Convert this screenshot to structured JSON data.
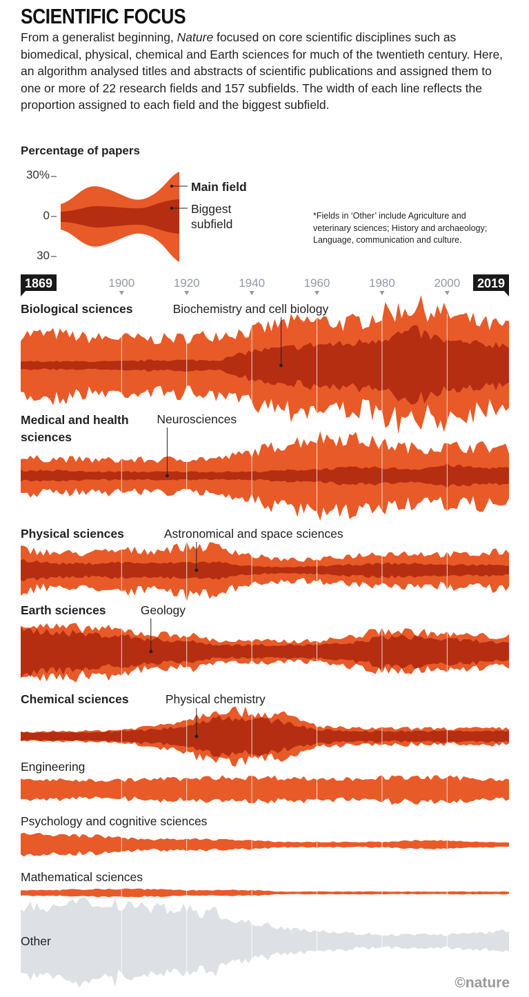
{
  "title": "SCIENTIFIC FOCUS",
  "intro": {
    "before": "From a generalist beginning, ",
    "italic": "Nature",
    "after": " focused on core scientific disciplines such as biomedical, physical, chemical and Earth sciences for much of the twentieth century. Here, an algorithm analysed titles and abstracts of scientific publications and assigned them to one or more of 22 research fields and 157 subfields. The width of each line reflects the proportion assigned to each field and the biggest subfield."
  },
  "legend": {
    "heading": "Percentage of papers",
    "ticks": [
      "30%",
      "0",
      "30"
    ],
    "main_label": "Main field",
    "sub_label_1": "Biggest",
    "sub_label_2": "subfield",
    "note": "*Fields in ‘Other’ include Agriculture and veterinary sciences; History and archaeology; Language, communication and culture."
  },
  "credit": "©nature",
  "colors": {
    "main": "#e85a28",
    "sub": "#b52e12",
    "other": "#dde1e6",
    "axis": "#8f9aa8"
  },
  "chart_data": {
    "type": "area",
    "title": "Scientific focus",
    "ylabel": "Percentage of papers",
    "xlim": [
      1869,
      2019
    ],
    "axis": {
      "start_label": "1869",
      "end_label": "2019",
      "ticks": [
        "1900",
        "1920",
        "1940",
        "1960",
        "1980",
        "2000"
      ]
    },
    "x": [
      1869,
      1880,
      1890,
      1900,
      1910,
      1920,
      1930,
      1940,
      1950,
      1960,
      1970,
      1980,
      1990,
      2000,
      2010,
      2019
    ],
    "series": [
      {
        "name": "Biological sciences",
        "bold": true,
        "subfield": "Biochemistry and cell biology",
        "sub_year": 1949,
        "main": [
          24,
          24,
          21,
          21,
          20,
          21,
          24,
          26,
          32,
          34,
          32,
          39,
          45,
          39,
          32,
          29
        ],
        "sub": [
          3,
          3,
          3,
          3,
          4,
          4,
          4,
          11,
          13,
          16,
          16,
          21,
          26,
          18,
          16,
          16
        ]
      },
      {
        "name": "Medical and health sciences",
        "bold": true,
        "subfield": "Neurosciences",
        "sub_year": 1914,
        "main": [
          13,
          13,
          12,
          12,
          12,
          13,
          13,
          18,
          24,
          29,
          29,
          24,
          21,
          22,
          22,
          21
        ],
        "sub": [
          4,
          4,
          3,
          3,
          3,
          3,
          3,
          3,
          4,
          5,
          6,
          6,
          5,
          8,
          6,
          6
        ]
      },
      {
        "name": "Physical sciences",
        "bold": true,
        "subfield": "Astronomical and space sciences",
        "sub_year": 1923,
        "main": [
          16,
          13,
          13,
          15,
          15,
          18,
          18,
          11,
          8,
          8,
          11,
          13,
          13,
          12,
          12,
          15
        ],
        "sub": [
          8,
          5,
          5,
          6,
          5,
          6,
          6,
          3,
          2,
          3,
          4,
          5,
          5,
          4,
          4,
          4
        ]
      },
      {
        "name": "Earth sciences",
        "bold": true,
        "subfield": "Geology",
        "sub_year": 1909,
        "main": [
          21,
          18,
          18,
          16,
          13,
          13,
          8,
          8,
          8,
          8,
          11,
          16,
          15,
          13,
          12,
          11
        ],
        "sub": [
          16,
          15,
          13,
          12,
          9,
          8,
          5,
          5,
          5,
          5,
          6,
          11,
          11,
          9,
          8,
          6
        ]
      },
      {
        "name": "Chemical sciences",
        "bold": true,
        "subfield": "Physical chemistry",
        "sub_year": 1923,
        "main": [
          3,
          4,
          4,
          5,
          8,
          13,
          21,
          18,
          16,
          8,
          6,
          6,
          6,
          6,
          6,
          6
        ],
        "sub": [
          3,
          3,
          3,
          4,
          5,
          8,
          15,
          13,
          11,
          5,
          4,
          4,
          4,
          4,
          4,
          4
        ]
      },
      {
        "name": "Engineering",
        "bold": false,
        "main": [
          8,
          7,
          7,
          7,
          8,
          8,
          9,
          9,
          9,
          8,
          8,
          9,
          9,
          9,
          8,
          8
        ]
      },
      {
        "name": "Psychology and cognitive sciences",
        "bold": false,
        "main": [
          8,
          7,
          7,
          5,
          4,
          4,
          4,
          3,
          2,
          2,
          2,
          2,
          3,
          3,
          2,
          2
        ]
      },
      {
        "name": "Mathematical sciences",
        "bold": false,
        "main": [
          2,
          2,
          3,
          3,
          3,
          2,
          2,
          2,
          1,
          1,
          1,
          1,
          1,
          1,
          1,
          1
        ]
      },
      {
        "name": "Other",
        "bold": false,
        "other": true,
        "main": [
          24,
          26,
          29,
          29,
          26,
          24,
          21,
          13,
          11,
          8,
          6,
          5,
          5,
          5,
          6,
          8
        ]
      }
    ]
  }
}
